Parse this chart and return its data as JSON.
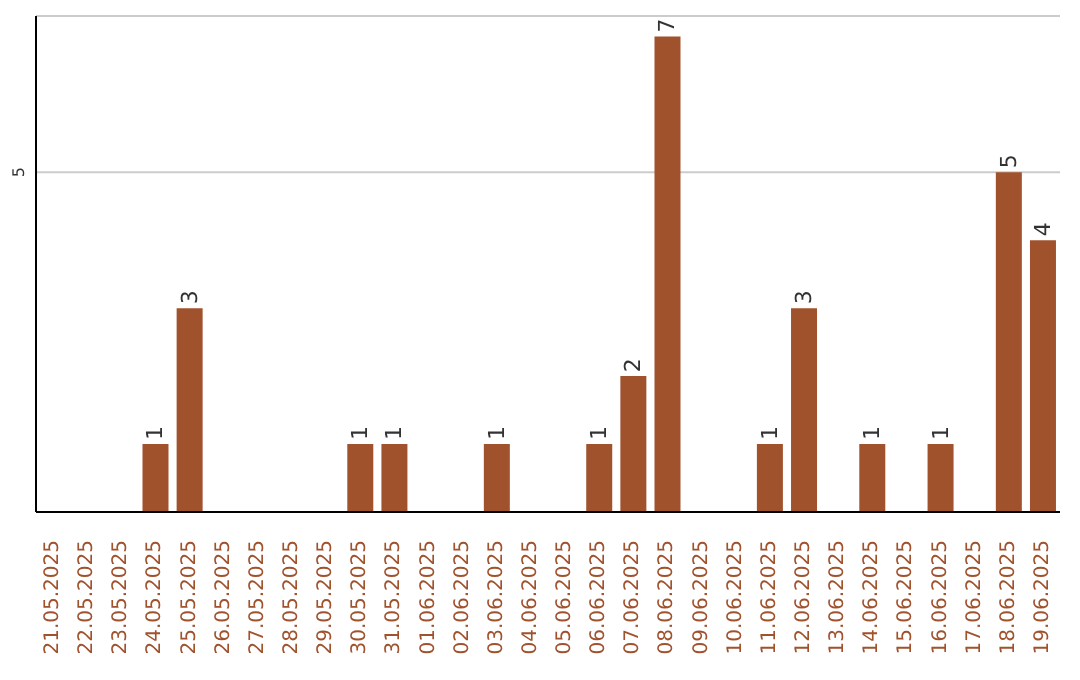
{
  "chart_data": {
    "type": "bar",
    "categories": [
      "21.05.2025",
      "22.05.2025",
      "23.05.2025",
      "24.05.2025",
      "25.05.2025",
      "26.05.2025",
      "27.05.2025",
      "28.05.2025",
      "29.05.2025",
      "30.05.2025",
      "31.05.2025",
      "01.06.2025",
      "02.06.2025",
      "03.06.2025",
      "04.06.2025",
      "05.06.2025",
      "06.06.2025",
      "07.06.2025",
      "08.06.2025",
      "09.06.2025",
      "10.06.2025",
      "11.06.2025",
      "12.06.2025",
      "13.06.2025",
      "14.06.2025",
      "15.06.2025",
      "16.06.2025",
      "17.06.2025",
      "18.06.2025",
      "19.06.2025"
    ],
    "values": [
      0,
      0,
      0,
      1,
      3,
      0,
      0,
      0,
      0,
      1,
      1,
      0,
      0,
      1,
      0,
      0,
      1,
      2,
      7,
      0,
      0,
      1,
      3,
      0,
      1,
      0,
      1,
      0,
      5,
      4
    ],
    "value_labels": [
      null,
      null,
      null,
      "1",
      "3",
      null,
      null,
      null,
      null,
      "1",
      "1",
      null,
      null,
      "1",
      null,
      null,
      "1",
      "2",
      "7",
      null,
      null,
      "1",
      "3",
      null,
      "1",
      null,
      "1",
      null,
      "5",
      "4"
    ],
    "color": "#a0522d",
    "ylim": [
      0,
      7.3
    ],
    "yticks": [
      5
    ],
    "grid": "y"
  }
}
